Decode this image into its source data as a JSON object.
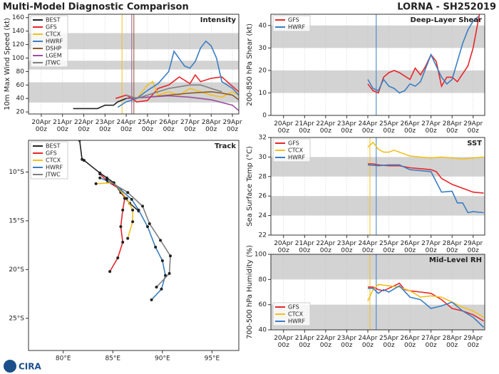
{
  "header": {
    "title": "Multi-Model Diagnostic Comparison",
    "subtitle": "LORNA - SH252019"
  },
  "logo": "CIRA",
  "chart_data": [
    {
      "type": "line",
      "title": "Intensity",
      "ylabel": "10m Max Wind Speed (kt)",
      "legend": "upper left",
      "grid": true,
      "xlim": [
        19.4,
        29.3
      ],
      "ylim": [
        17,
        165
      ],
      "xticks": [
        {
          "value": 20,
          "label": "20Apr\n00z"
        },
        {
          "value": 21,
          "label": "21Apr\n00z"
        },
        {
          "value": 22,
          "label": "22Apr\n00z"
        },
        {
          "value": 23,
          "label": "23Apr\n00z"
        },
        {
          "value": 24,
          "label": "24Apr\n00z"
        },
        {
          "value": 25,
          "label": "25Apr\n00z"
        },
        {
          "value": 26,
          "label": "26Apr\n00z"
        },
        {
          "value": 27,
          "label": "27Apr\n00z"
        },
        {
          "value": 28,
          "label": "28Apr\n00z"
        },
        {
          "value": 29,
          "label": "29Apr\n00z"
        }
      ],
      "yticks": [
        20,
        40,
        60,
        80,
        100,
        120,
        140,
        160
      ],
      "bands": [
        [
          34,
          64
        ],
        [
          83,
          96
        ],
        [
          113,
          137
        ]
      ],
      "markers": [
        {
          "x": 23.8,
          "color": "#f2c01e"
        },
        {
          "x": 24.26,
          "color": "#9b4f9e"
        },
        {
          "x": 24.36,
          "color": "#8b5a2b"
        }
      ],
      "series": [
        {
          "name": "BEST",
          "color": "#222222",
          "x": [
            21.5,
            22.65,
            23.0,
            23.4,
            23.6,
            24.0
          ],
          "values": [
            25,
            25,
            30,
            30,
            35,
            40
          ]
        },
        {
          "name": "GFS",
          "color": "#e8262a",
          "x": [
            23.5,
            24.0,
            24.5,
            25.0,
            25.5,
            26.0,
            26.5,
            27.0,
            27.25,
            27.5,
            28.0,
            28.5,
            29.0,
            29.3
          ],
          "values": [
            40,
            45,
            35,
            37,
            55,
            60,
            72,
            62,
            75,
            65,
            70,
            72,
            58,
            50
          ]
        },
        {
          "name": "CTCX",
          "color": "#f2c01e",
          "x": [
            24.0,
            24.5,
            25.0,
            25.25,
            25.5,
            26.0,
            26.5,
            27.0,
            27.5,
            28.0,
            28.5,
            29.0,
            29.3
          ],
          "values": [
            45,
            40,
            60,
            65,
            45,
            50,
            45,
            55,
            50,
            45,
            42,
            50,
            45
          ]
        },
        {
          "name": "HWRF",
          "color": "#3a7fc4",
          "x": [
            23.6,
            24.0,
            24.5,
            25.0,
            25.5,
            26.0,
            26.25,
            26.75,
            27.0,
            27.25,
            27.5,
            27.75,
            28.0,
            28.25,
            28.5,
            29.0,
            29.3
          ],
          "values": [
            27,
            35,
            40,
            52,
            62,
            80,
            110,
            88,
            85,
            95,
            115,
            125,
            118,
            100,
            65,
            55,
            45
          ]
        },
        {
          "name": "DSHP",
          "color": "#8b5a2b",
          "x": [
            24.0,
            25.0,
            26.0,
            27.0,
            28.0,
            28.5,
            29.0,
            29.3
          ],
          "values": [
            40,
            42,
            45,
            48,
            50,
            48,
            45,
            38
          ]
        },
        {
          "name": "LGEM",
          "color": "#9b4f9e",
          "x": [
            24.0,
            25.0,
            26.0,
            27.0,
            28.0,
            29.0,
            29.3
          ],
          "values": [
            40,
            42,
            44,
            42,
            38,
            30,
            22
          ]
        },
        {
          "name": "JTWC",
          "color": "#808080",
          "x": [
            24.0,
            24.5,
            25.0,
            25.5,
            26.0,
            27.0,
            27.5,
            28.0,
            28.5
          ],
          "values": [
            45,
            40,
            45,
            50,
            55,
            60,
            60,
            55,
            50
          ]
        }
      ]
    },
    {
      "type": "line",
      "title": "Deep-Layer Shear",
      "ylabel": "200-850 hPa Shear (kt)",
      "legend": "upper left",
      "grid": true,
      "xlim": [
        19.4,
        29.55
      ],
      "ylim": [
        0,
        45
      ],
      "xticks": [
        {
          "value": 20,
          "label": "20Apr\n00z"
        },
        {
          "value": 21,
          "label": "21Apr\n00z"
        },
        {
          "value": 22,
          "label": "22Apr\n00z"
        },
        {
          "value": 23,
          "label": "23Apr\n00z"
        },
        {
          "value": 24,
          "label": "24Apr\n00z"
        },
        {
          "value": 25,
          "label": "25Apr\n00z"
        },
        {
          "value": 26,
          "label": "26Apr\n00z"
        },
        {
          "value": 27,
          "label": "27Apr\n00z"
        },
        {
          "value": 28,
          "label": "28Apr\n00z"
        },
        {
          "value": 29,
          "label": "29Apr\n00z"
        }
      ],
      "yticks": [
        0,
        10,
        20,
        30,
        40
      ],
      "bands": [
        [
          10,
          20
        ],
        [
          30,
          40
        ]
      ],
      "markers": [
        {
          "x": 24.4,
          "color": "#3a7fc4"
        }
      ],
      "series": [
        {
          "name": "GFS",
          "color": "#e8262a",
          "x": [
            24.0,
            24.25,
            24.5,
            24.75,
            25.0,
            25.25,
            25.5,
            26.0,
            26.25,
            26.5,
            26.75,
            27.0,
            27.25,
            27.5,
            27.75,
            28.0,
            28.25,
            28.75,
            29.0,
            29.3
          ],
          "values": [
            14,
            11,
            10,
            17,
            19,
            20,
            19,
            16,
            21,
            18,
            22,
            27,
            24,
            13,
            17,
            17,
            15,
            22,
            30,
            45
          ]
        },
        {
          "name": "HWRF",
          "color": "#3a7fc4",
          "x": [
            24.0,
            24.25,
            24.5,
            24.75,
            25.0,
            25.25,
            25.5,
            25.75,
            26.0,
            26.25,
            26.5,
            26.75,
            27.0,
            27.25,
            27.5,
            27.75,
            28.0,
            28.25,
            28.5,
            28.75,
            29.0,
            29.25
          ],
          "values": [
            16,
            12,
            11,
            16,
            13,
            12,
            10,
            11,
            14,
            13,
            15,
            21,
            27,
            22,
            17,
            14,
            16,
            24,
            32,
            38,
            42,
            44
          ]
        }
      ]
    },
    {
      "type": "line",
      "title": "SST",
      "ylabel": "Sea Surface Temp (°C)",
      "legend": "upper left",
      "grid": true,
      "xlim": [
        19.4,
        29.55
      ],
      "ylim": [
        22,
        32
      ],
      "xticks": [
        {
          "value": 20,
          "label": "20Apr\n00z"
        },
        {
          "value": 21,
          "label": "21Apr\n00z"
        },
        {
          "value": 22,
          "label": "22Apr\n00z"
        },
        {
          "value": 23,
          "label": "23Apr\n00z"
        },
        {
          "value": 24,
          "label": "24Apr\n00z"
        },
        {
          "value": 25,
          "label": "25Apr\n00z"
        },
        {
          "value": 26,
          "label": "26Apr\n00z"
        },
        {
          "value": 27,
          "label": "27Apr\n00z"
        },
        {
          "value": 28,
          "label": "28Apr\n00z"
        },
        {
          "value": 29,
          "label": "29Apr\n00z"
        }
      ],
      "yticks": [
        22,
        24,
        26,
        28,
        30,
        32
      ],
      "bands": [
        [
          24,
          26
        ],
        [
          28,
          30
        ]
      ],
      "markers": [
        {
          "x": 24.1,
          "color": "#f2c01e"
        },
        {
          "x": 24.4,
          "color": "#3a7fc4"
        }
      ],
      "series": [
        {
          "name": "GFS",
          "color": "#e8262a",
          "x": [
            24.0,
            24.25,
            24.5,
            25.0,
            25.5,
            26.0,
            26.5,
            27.0,
            27.25,
            27.5,
            28.0,
            28.5,
            29.0,
            29.5
          ],
          "values": [
            29.3,
            29.3,
            29.2,
            29.1,
            29.1,
            28.9,
            28.8,
            28.7,
            28.5,
            27.8,
            27.2,
            26.8,
            26.4,
            26.3
          ]
        },
        {
          "name": "CTCX",
          "color": "#f2c01e",
          "x": [
            24.0,
            24.25,
            24.5,
            24.75,
            25.0,
            25.25,
            25.5,
            26.0,
            26.5,
            27.0,
            27.5,
            28.0,
            28.5,
            29.0,
            29.5
          ],
          "values": [
            31.0,
            31.5,
            30.8,
            30.5,
            30.5,
            30.7,
            30.5,
            30.1,
            30.0,
            29.9,
            30.0,
            29.9,
            29.8,
            29.9,
            30.0
          ]
        },
        {
          "name": "HWRF",
          "color": "#3a7fc4",
          "x": [
            24.0,
            24.5,
            25.0,
            25.5,
            26.0,
            26.5,
            27.0,
            27.5,
            28.0,
            28.25,
            28.5,
            28.75,
            29.0,
            29.5
          ],
          "values": [
            29.2,
            29.1,
            29.2,
            29.2,
            28.7,
            28.6,
            28.5,
            26.4,
            26.5,
            25.3,
            25.3,
            24.3,
            24.4,
            24.3
          ]
        }
      ]
    },
    {
      "type": "line",
      "title": "Mid-Level RH",
      "ylabel": "700-500 hPa Humidity (%)",
      "legend": "lower left",
      "grid": true,
      "xlim": [
        19.4,
        29.55
      ],
      "ylim": [
        40,
        100
      ],
      "xticks": [
        {
          "value": 20,
          "label": "20Apr\n00z"
        },
        {
          "value": 21,
          "label": "21Apr\n00z"
        },
        {
          "value": 22,
          "label": "22Apr\n00z"
        },
        {
          "value": 23,
          "label": "23Apr\n00z"
        },
        {
          "value": 24,
          "label": "24Apr\n00z"
        },
        {
          "value": 25,
          "label": "25Apr\n00z"
        },
        {
          "value": 26,
          "label": "26Apr\n00z"
        },
        {
          "value": 27,
          "label": "27Apr\n00z"
        },
        {
          "value": 28,
          "label": "28Apr\n00z"
        },
        {
          "value": 29,
          "label": "29Apr\n00z"
        }
      ],
      "yticks": [
        40,
        60,
        80,
        100
      ],
      "bands": [
        [
          40,
          60
        ],
        [
          80,
          100
        ]
      ],
      "markers": [
        {
          "x": 24.1,
          "color": "#f2c01e"
        },
        {
          "x": 24.4,
          "color": "#3a7fc4"
        }
      ],
      "series": [
        {
          "name": "GFS",
          "color": "#e8262a",
          "x": [
            24.0,
            24.25,
            24.5,
            24.75,
            25.0,
            25.5,
            25.75,
            26.0,
            26.5,
            27.0,
            27.5,
            28.0,
            28.5,
            29.0,
            29.5
          ],
          "values": [
            74,
            74,
            72,
            71,
            73,
            77,
            72,
            71,
            70,
            69,
            64,
            57,
            55,
            52,
            47
          ]
        },
        {
          "name": "CTCX",
          "color": "#f2c01e",
          "x": [
            24.0,
            24.25,
            24.5,
            25.0,
            25.5,
            26.0,
            26.5,
            27.0,
            27.5,
            28.0,
            28.5,
            29.0,
            29.5
          ],
          "values": [
            63,
            72,
            76,
            75,
            74,
            71,
            66,
            67,
            66,
            62,
            58,
            55,
            50
          ]
        },
        {
          "name": "HWRF",
          "color": "#3a7fc4",
          "x": [
            24.0,
            24.25,
            24.5,
            24.75,
            25.0,
            25.5,
            26.0,
            26.5,
            27.0,
            27.5,
            28.0,
            28.5,
            29.0,
            29.5
          ],
          "values": [
            73,
            73,
            69,
            72,
            70,
            75,
            66,
            64,
            57,
            59,
            62,
            55,
            50,
            42
          ]
        }
      ]
    },
    {
      "type": "track",
      "title": "Track",
      "legend": "upper left",
      "grid": false,
      "xlim": [
        76.5,
        97.7
      ],
      "ylim": [
        -28.3,
        -6.75
      ],
      "xticks": [
        {
          "value": 80,
          "label": "80°E"
        },
        {
          "value": 85,
          "label": "85°E"
        },
        {
          "value": 90,
          "label": "90°E"
        },
        {
          "value": 95,
          "label": "95°E"
        }
      ],
      "yticks": [
        {
          "value": -10,
          "label": "10°S"
        },
        {
          "value": -15,
          "label": "15°S"
        },
        {
          "value": -20,
          "label": "20°S"
        },
        {
          "value": -25,
          "label": "25°S"
        }
      ],
      "series": [
        {
          "name": "BEST",
          "color": "#222222",
          "x": [
            81.65,
            81.9,
            82.1,
            83.7,
            84.4,
            85.1,
            85.8,
            86.7,
            87.6
          ],
          "values": [
            -6.75,
            -8.7,
            -8.8,
            -10.1,
            -10.6,
            -11.1,
            -12.1,
            -13.2,
            -14.0
          ]
        },
        {
          "name": "GFS",
          "color": "#e8262a",
          "x": [
            83.7,
            84.5,
            85.8,
            86.2,
            86.0,
            85.8,
            86.0,
            85.5,
            84.7
          ],
          "values": [
            -10.2,
            -11.0,
            -11.8,
            -12.7,
            -13.9,
            -15.6,
            -17.2,
            -18.8,
            -20.2
          ]
        },
        {
          "name": "CTCX",
          "color": "#f2c01e",
          "x": [
            83.3,
            85.1,
            86.4,
            87.0,
            87.0,
            86.5
          ],
          "values": [
            -11.2,
            -11.1,
            -12.7,
            -13.9,
            -15.1,
            -16.8
          ]
        },
        {
          "name": "HWRF",
          "color": "#3a7fc4",
          "x": [
            83.7,
            85.1,
            86.9,
            87.6,
            88.5,
            89.3,
            90.0,
            90.3,
            89.9,
            88.9
          ],
          "values": [
            -10.6,
            -11.2,
            -12.8,
            -13.9,
            -15.6,
            -17.7,
            -19.1,
            -20.6,
            -22.0,
            -23.1
          ]
        },
        {
          "name": "JTWC",
          "color": "#808080",
          "x": [
            84.4,
            86.5,
            88.0,
            88.7,
            89.8,
            90.8,
            90.7,
            89.4
          ],
          "values": [
            -10.8,
            -12.1,
            -13.5,
            -15.3,
            -17.0,
            -18.6,
            -20.4,
            -21.8
          ]
        }
      ]
    }
  ]
}
